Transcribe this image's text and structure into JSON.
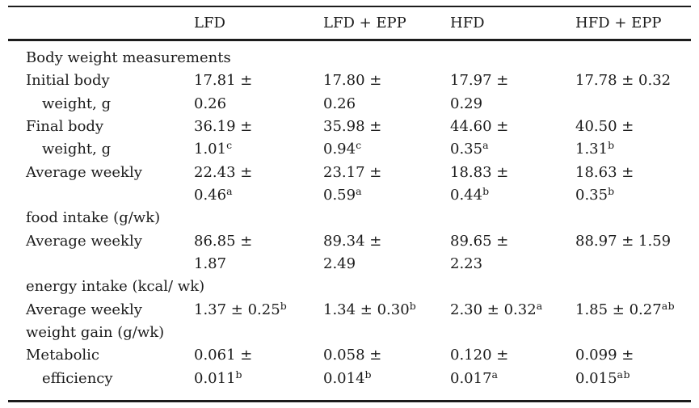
{
  "page": {
    "background_color": "#ffffff",
    "text_color": "#1b1b1b",
    "rule_color": "#1c1c1c"
  },
  "table": {
    "columns": [
      "",
      "LFD",
      "LFD + EPP",
      "HFD",
      "HFD + EPP"
    ],
    "lines": [
      {
        "cells": [
          {
            "t": "Body weight measurements"
          },
          {
            "t": ""
          },
          {
            "t": ""
          },
          {
            "t": ""
          },
          {
            "t": ""
          }
        ]
      },
      {
        "cells": [
          {
            "t": "Initial body"
          },
          {
            "t": "17.81 ±"
          },
          {
            "t": "17.80 ±"
          },
          {
            "t": "17.97 ±"
          },
          {
            "t": "17.78 ± 0.32"
          }
        ]
      },
      {
        "cells": [
          {
            "t": "weight, g",
            "i": true
          },
          {
            "t": "0.26"
          },
          {
            "t": "0.26"
          },
          {
            "t": "0.29"
          },
          {
            "t": ""
          }
        ]
      },
      {
        "cells": [
          {
            "t": "Final body"
          },
          {
            "t": "36.19 ±"
          },
          {
            "t": "35.98 ±"
          },
          {
            "t": "44.60 ±"
          },
          {
            "t": "40.50 ±"
          }
        ]
      },
      {
        "cells": [
          {
            "t": "weight, g",
            "i": true
          },
          {
            "t": "1.01",
            "s": "c"
          },
          {
            "t": "0.94",
            "s": "c"
          },
          {
            "t": "0.35",
            "s": "a"
          },
          {
            "t": "1.31",
            "s": "b"
          }
        ]
      },
      {
        "cells": [
          {
            "t": "Average weekly"
          },
          {
            "t": "22.43 ±"
          },
          {
            "t": "23.17 ±"
          },
          {
            "t": "18.83 ±"
          },
          {
            "t": "18.63 ±"
          }
        ]
      },
      {
        "cells": [
          {
            "t": ""
          },
          {
            "t": "0.46",
            "s": "a"
          },
          {
            "t": "0.59",
            "s": "a"
          },
          {
            "t": "0.44",
            "s": "b"
          },
          {
            "t": "0.35",
            "s": "b"
          }
        ]
      },
      {
        "cells": [
          {
            "t": "food intake (g/wk)"
          },
          {
            "t": ""
          },
          {
            "t": ""
          },
          {
            "t": ""
          },
          {
            "t": ""
          }
        ]
      },
      {
        "cells": [
          {
            "t": "Average weekly"
          },
          {
            "t": "86.85 ±"
          },
          {
            "t": "89.34 ±"
          },
          {
            "t": "89.65 ±"
          },
          {
            "t": "88.97 ± 1.59"
          }
        ]
      },
      {
        "cells": [
          {
            "t": ""
          },
          {
            "t": "1.87"
          },
          {
            "t": "2.49"
          },
          {
            "t": "2.23"
          },
          {
            "t": ""
          }
        ]
      },
      {
        "cells": [
          {
            "t": "energy intake (kcal/ wk)"
          },
          {
            "t": ""
          },
          {
            "t": ""
          },
          {
            "t": ""
          },
          {
            "t": ""
          }
        ]
      },
      {
        "cells": [
          {
            "t": "Average weekly"
          },
          {
            "t": "1.37 ± 0.25",
            "s": "b"
          },
          {
            "t": "1.34 ± 0.30",
            "s": "b"
          },
          {
            "t": "2.30 ± 0.32",
            "s": "a"
          },
          {
            "t": "1.85 ± 0.27",
            "s": "ab"
          }
        ]
      },
      {
        "cells": [
          {
            "t": "weight gain (g/wk)"
          },
          {
            "t": ""
          },
          {
            "t": ""
          },
          {
            "t": ""
          },
          {
            "t": ""
          }
        ]
      },
      {
        "cells": [
          {
            "t": "Metabolic"
          },
          {
            "t": "0.061 ±"
          },
          {
            "t": "0.058 ±"
          },
          {
            "t": "0.120 ±"
          },
          {
            "t": "0.099 ±"
          }
        ]
      },
      {
        "cells": [
          {
            "t": "efficiency",
            "i": true
          },
          {
            "t": "0.011",
            "s": "b"
          },
          {
            "t": "0.014",
            "s": "b"
          },
          {
            "t": "0.017",
            "s": "a"
          },
          {
            "t": "0.015",
            "s": "ab"
          }
        ]
      }
    ]
  }
}
